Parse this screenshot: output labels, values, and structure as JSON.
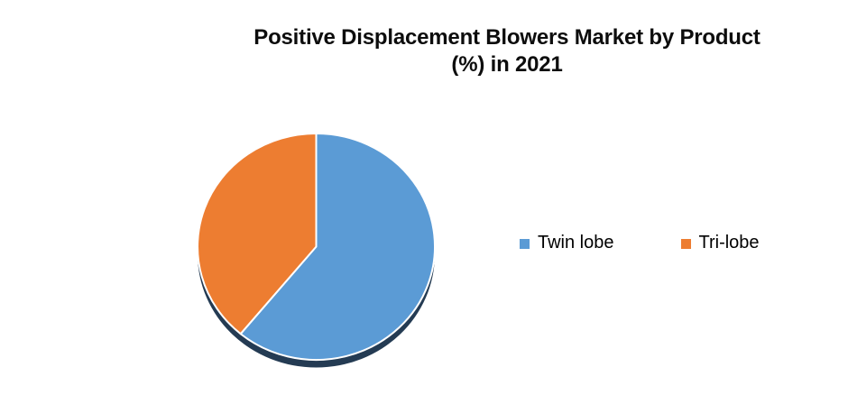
{
  "chart_data": {
    "type": "pie",
    "title": "Positive Displacement Blowers Market by Product (%) in 2021",
    "title_line1": "Positive Displacement Blowers Market by Product",
    "title_line2": "(%) in 2021",
    "categories": [
      "Twin lobe",
      "Tri-lobe"
    ],
    "values": [
      61,
      39
    ],
    "unit": "%",
    "colors": [
      "#5B9BD5",
      "#ED7D31"
    ],
    "shadow_color": "#243B53",
    "slice_outline_color": "#FFFFFF",
    "start_angle_deg": 0,
    "direction": "clockwise",
    "data_labels_shown": false,
    "legend_position": "right-middle",
    "legend": [
      {
        "label": "Twin lobe",
        "color": "#5B9BD5"
      },
      {
        "label": "Tri-lobe",
        "color": "#ED7D31"
      }
    ]
  }
}
